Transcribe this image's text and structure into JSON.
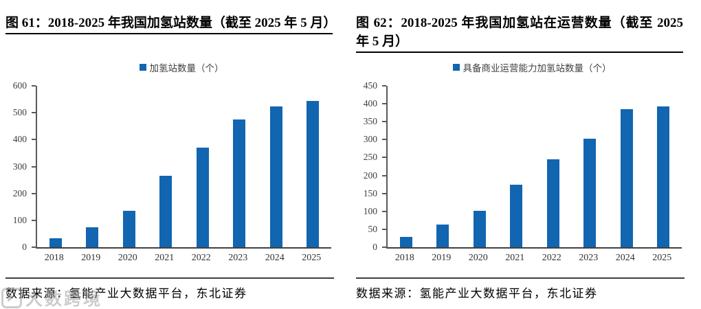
{
  "watermark": {
    "text": "大数跨境"
  },
  "source_label": "数据来源：氢能产业大数据平台，东北证券",
  "chart_data": [
    {
      "type": "bar",
      "title": "图 61：2018-2025 年我国加氢站数量（截至 2025 年 5 月）",
      "legend": "加氢站数量（个）",
      "categories": [
        "2018",
        "2019",
        "2020",
        "2021",
        "2022",
        "2023",
        "2024",
        "2025"
      ],
      "values": [
        34,
        75,
        135,
        266,
        370,
        476,
        524,
        543
      ],
      "xlabel": "",
      "ylabel": "",
      "ylim": [
        0,
        600
      ],
      "ytick_step": 100,
      "grid": false,
      "legend_position": "top-center",
      "bar_color": "#1265B0",
      "axis_color": "#595959",
      "source": "数据来源：氢能产业大数据平台，东北证券"
    },
    {
      "type": "bar",
      "title": "图 62：2018-2025 年我国加氢站在运营数量（截至 2025 年 5 月）",
      "legend": "具备商业运营能力加氢站数量（个）",
      "categories": [
        "2018",
        "2019",
        "2020",
        "2021",
        "2022",
        "2023",
        "2024",
        "2025"
      ],
      "values": [
        28,
        63,
        102,
        175,
        246,
        302,
        385,
        392
      ],
      "xlabel": "",
      "ylabel": "",
      "ylim": [
        0,
        450
      ],
      "ytick_step": 50,
      "grid": false,
      "legend_position": "top-center",
      "bar_color": "#1265B0",
      "axis_color": "#595959",
      "source": "数据来源：氢能产业大数据平台，东北证券"
    }
  ]
}
